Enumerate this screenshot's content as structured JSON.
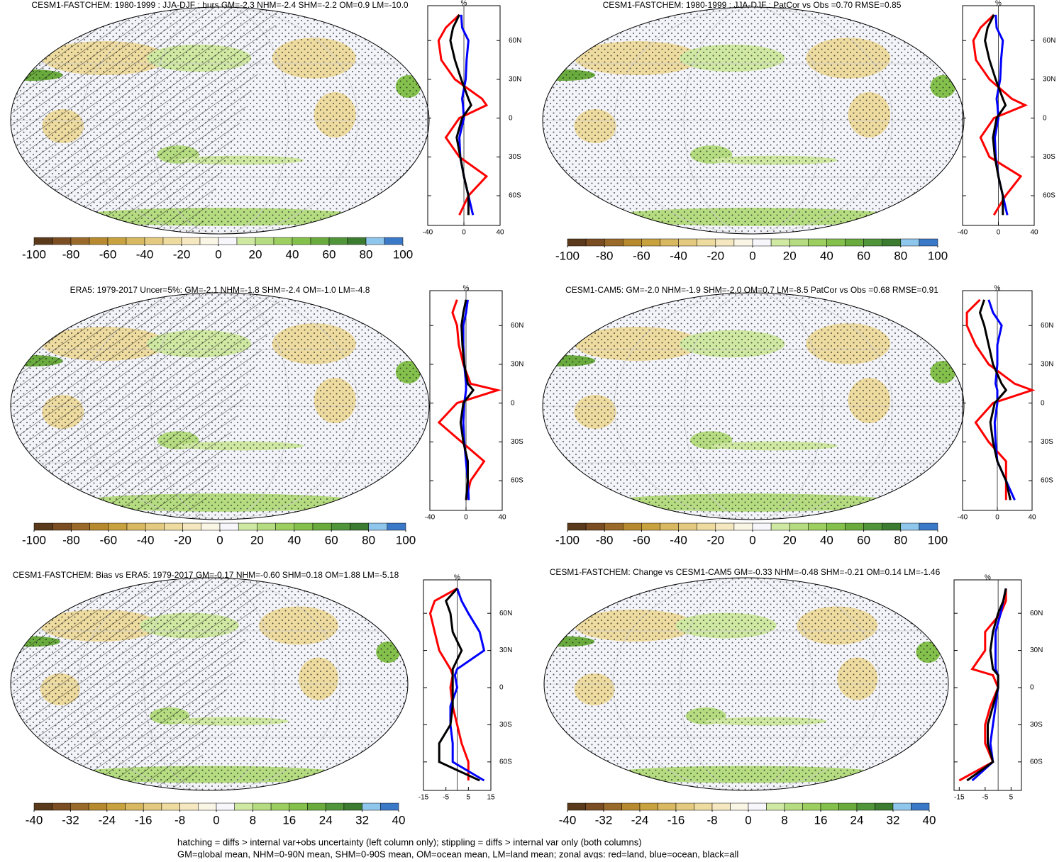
{
  "colorbar_colors": [
    "#5a3a1a",
    "#7a4d22",
    "#9a6a2a",
    "#b88a30",
    "#c9a240",
    "#d8b860",
    "#e4ca80",
    "#eedba0",
    "#f5e8c0",
    "#faf6e6",
    "#f6f6fb",
    "#cfe8a2",
    "#b5dc80",
    "#9ccf60",
    "#84c04c",
    "#6aab3e",
    "#51953a",
    "#3c7c30",
    "#8fc6ec",
    "#3a78c8"
  ],
  "chart_data": [
    {
      "type": "map",
      "title": "CESM1-FASTCHEM: 1980-1999 : JJA-DJF : hurs GM=-2.3 NHM=-2.4 SHM=-2.2 OM=0.9 LM=-10.0",
      "hatching": true,
      "colorbar_ticks": [
        -100,
        -80,
        -60,
        -40,
        -20,
        0,
        20,
        40,
        60,
        80,
        100
      ],
      "colorbar_lim": [
        -100,
        100
      ],
      "zonal": {
        "type": "line",
        "xlabel": "%",
        "xlim": [
          -40,
          40
        ],
        "xticks": [
          -40,
          0,
          40
        ],
        "ylim": [
          -83,
          87
        ],
        "yticks": [
          {
            "value": 60,
            "label": "60N"
          },
          {
            "value": 30,
            "label": "30N"
          },
          0,
          {
            "value": -30,
            "label": "30S"
          },
          {
            "value": -60,
            "label": "60S"
          }
        ],
        "y": [
          80,
          70,
          60,
          45,
          30,
          15,
          10,
          0,
          -15,
          -30,
          -45,
          -60,
          -75
        ],
        "series": [
          {
            "color": "#ff0000",
            "values": [
              -5,
              -20,
              -28,
              -25,
              -10,
              20,
              25,
              -5,
              -20,
              -5,
              25,
              5,
              -5
            ]
          },
          {
            "color": "#0000ff",
            "values": [
              -3,
              -2,
              5,
              3,
              2,
              -2,
              -1,
              0,
              -5,
              -4,
              0,
              5,
              10
            ]
          },
          {
            "color": "#000000",
            "values": [
              -5,
              -12,
              -15,
              -10,
              -3,
              5,
              8,
              -2,
              -8,
              -4,
              0,
              5,
              5
            ]
          }
        ]
      }
    },
    {
      "type": "map",
      "title": "CESM1-FASTCHEM: 1980-1999 : JJA-DJF : PatCor vs Obs =0.70 RMSE=0.85",
      "hatching": false,
      "colorbar_ticks": [
        -100,
        -80,
        -60,
        -40,
        -20,
        0,
        20,
        40,
        60,
        80,
        100
      ],
      "colorbar_lim": [
        -100,
        100
      ],
      "zonal": {
        "type": "line",
        "xlabel": "%",
        "xlim": [
          -40,
          40
        ],
        "xticks": [
          -40,
          0,
          40
        ],
        "ylim": [
          -83,
          87
        ],
        "yticks": [
          {
            "value": 60,
            "label": "60N"
          },
          {
            "value": 30,
            "label": "30N"
          },
          0,
          {
            "value": -30,
            "label": "30S"
          },
          {
            "value": -60,
            "label": "60S"
          }
        ],
        "y": [
          80,
          70,
          60,
          45,
          30,
          15,
          10,
          0,
          -15,
          -30,
          -45,
          -60,
          -75
        ],
        "series": [
          {
            "color": "#ff0000",
            "values": [
              -5,
              -20,
              -28,
              -25,
              -10,
              15,
              30,
              -5,
              -20,
              -10,
              25,
              8,
              -5
            ]
          },
          {
            "color": "#0000ff",
            "values": [
              -3,
              -2,
              5,
              3,
              2,
              -2,
              -1,
              0,
              -4,
              -3,
              0,
              5,
              10
            ]
          },
          {
            "color": "#000000",
            "values": [
              -5,
              -12,
              -15,
              -10,
              -3,
              5,
              8,
              -2,
              -6,
              -4,
              0,
              5,
              5
            ]
          }
        ]
      }
    },
    {
      "type": "map",
      "title": "ERA5: 1979-2017 Uncer=5%: GM=-2.1 NHM=-1.8 SHM=-2.4 OM=-1.0 LM=-4.8",
      "hatching": true,
      "colorbar_ticks": [
        -100,
        -80,
        -60,
        -40,
        -20,
        0,
        20,
        40,
        60,
        80,
        100
      ],
      "colorbar_lim": [
        -100,
        100
      ],
      "zonal": {
        "type": "line",
        "xlabel": "%",
        "xlim": [
          -40,
          40
        ],
        "xticks": [
          -40,
          0,
          40
        ],
        "ylim": [
          -83,
          87
        ],
        "yticks": [
          {
            "value": 60,
            "label": "60N"
          },
          {
            "value": 30,
            "label": "30N"
          },
          0,
          {
            "value": -30,
            "label": "30S"
          },
          {
            "value": -60,
            "label": "60S"
          }
        ],
        "y": [
          80,
          70,
          60,
          45,
          30,
          15,
          10,
          0,
          -15,
          -30,
          -45,
          -60,
          -75
        ],
        "series": [
          {
            "color": "#ff0000",
            "values": [
              -10,
              -15,
              -10,
              -8,
              -3,
              5,
              35,
              -10,
              -30,
              -5,
              20,
              5,
              0
            ]
          },
          {
            "color": "#0000ff",
            "values": [
              2,
              0,
              -3,
              -3,
              -2,
              0,
              0,
              -2,
              -3,
              -2,
              0,
              2,
              3
            ]
          },
          {
            "color": "#000000",
            "values": [
              0,
              -3,
              -5,
              -4,
              -2,
              2,
              8,
              -3,
              -6,
              -3,
              2,
              2,
              0
            ]
          }
        ]
      }
    },
    {
      "type": "map",
      "title": "CESM1-CAM5: GM=-2.0 NHM=-1.9 SHM=-2.0 OM=0.7 LM=-8.5 PatCor vs Obs =0.68 RMSE=0.91",
      "hatching": false,
      "colorbar_ticks": [
        -100,
        -80,
        -60,
        -40,
        -20,
        0,
        20,
        40,
        60,
        80,
        100
      ],
      "colorbar_lim": [
        -100,
        100
      ],
      "zonal": {
        "type": "line",
        "xlabel": "%",
        "xlim": [
          -40,
          40
        ],
        "xticks": [
          -40,
          0,
          40
        ],
        "ylim": [
          -83,
          87
        ],
        "yticks": [
          {
            "value": 60,
            "label": "60N"
          },
          {
            "value": 30,
            "label": "30N"
          },
          0,
          {
            "value": -30,
            "label": "30S"
          },
          {
            "value": -60,
            "label": "60S"
          }
        ],
        "y": [
          80,
          70,
          60,
          45,
          30,
          15,
          10,
          0,
          -15,
          -30,
          -45,
          -60,
          -75
        ],
        "series": [
          {
            "color": "#ff0000",
            "values": [
              -20,
              -35,
              -35,
              -25,
              -10,
              20,
              40,
              -5,
              -25,
              -10,
              10,
              10,
              10
            ]
          },
          {
            "color": "#0000ff",
            "values": [
              -10,
              -5,
              5,
              0,
              0,
              -2,
              0,
              0,
              -3,
              -2,
              0,
              10,
              20
            ]
          },
          {
            "color": "#000000",
            "values": [
              -15,
              -20,
              -15,
              -10,
              -5,
              5,
              10,
              -3,
              -8,
              -5,
              0,
              10,
              15
            ]
          }
        ]
      }
    },
    {
      "type": "map",
      "title": "CESM1-FASTCHEM: Bias vs ERA5: 1979-2017 GM=-0.17 NHM=-0.60 SHM=0.18 OM=1.88 LM=-5.18",
      "hatching": true,
      "colorbar_ticks": [
        -40,
        -32,
        -24,
        -16,
        -8,
        0,
        8,
        16,
        24,
        32,
        40
      ],
      "colorbar_lim": [
        -40,
        40
      ],
      "zonal": {
        "type": "line",
        "xlabel": "%",
        "xlim": [
          -15,
          15
        ],
        "xticks": [
          -15,
          -5,
          5,
          15
        ],
        "ylim": [
          -83,
          87
        ],
        "yticks": [
          {
            "value": 60,
            "label": "60N"
          },
          {
            "value": 30,
            "label": "30N"
          },
          0,
          {
            "value": -30,
            "label": "30S"
          },
          {
            "value": -60,
            "label": "60S"
          }
        ],
        "y": [
          80,
          70,
          60,
          45,
          30,
          15,
          10,
          0,
          -15,
          -30,
          -45,
          -60,
          -75
        ],
        "series": [
          {
            "color": "#ff0000",
            "values": [
              0,
              -10,
              -12,
              -10,
              -8,
              -3,
              -2,
              -3,
              -2,
              0,
              2,
              5,
              5
            ]
          },
          {
            "color": "#0000ff",
            "values": [
              0,
              2,
              5,
              10,
              12,
              0,
              -1,
              0,
              -3,
              -3,
              -2,
              -2,
              12
            ]
          },
          {
            "color": "#000000",
            "values": [
              0,
              -5,
              -3,
              -2,
              2,
              -2,
              -2,
              -2,
              -2,
              -3,
              -8,
              -8,
              10
            ]
          }
        ]
      }
    },
    {
      "type": "map",
      "title": "CESM1-FASTCHEM: Change vs CESM1-CAM5 GM=-0.33 NHM=-0.48 SHM=-0.21 OM=0.14 LM=-1.46",
      "hatching": false,
      "colorbar_ticks": [
        -40,
        -32,
        -24,
        -16,
        -8,
        0,
        8,
        16,
        24,
        32,
        40
      ],
      "colorbar_lim": [
        -40,
        40
      ],
      "zonal": {
        "type": "line",
        "xlabel": "%",
        "xlim": [
          -17,
          9
        ],
        "xticks": [
          -15,
          -5,
          5
        ],
        "ylim": [
          -83,
          87
        ],
        "yticks": [
          {
            "value": 60,
            "label": "60N"
          },
          {
            "value": 30,
            "label": "30N"
          },
          0,
          {
            "value": -30,
            "label": "30S"
          },
          {
            "value": -60,
            "label": "60S"
          }
        ],
        "y": [
          80,
          70,
          60,
          45,
          30,
          15,
          10,
          0,
          -15,
          -30,
          -45,
          -60,
          -75
        ],
        "series": [
          {
            "color": "#ff0000",
            "values": [
              3,
              3,
              1,
              -5,
              -5,
              -10,
              -2,
              0,
              -3,
              -5,
              -5,
              -2,
              -15
            ]
          },
          {
            "color": "#0000ff",
            "values": [
              3,
              2,
              1,
              -1,
              -1,
              -1,
              0,
              0,
              -1,
              -2,
              -3,
              -2,
              -10
            ]
          },
          {
            "color": "#000000",
            "values": [
              3,
              2,
              0,
              -2,
              -3,
              -2,
              0,
              0,
              -2,
              -4,
              -4,
              -2,
              -12
            ]
          }
        ]
      }
    }
  ],
  "notes": [
    "hatching = diffs > internal var+obs uncertainty (left column only); stippling = diffs > internal var only (both columns)",
    "GM=global mean, NHM=0-90N mean, SHM=0-90S mean, OM=ocean mean, LM=land mean; zonal avgs: red=land, blue=ocean, black=all"
  ]
}
